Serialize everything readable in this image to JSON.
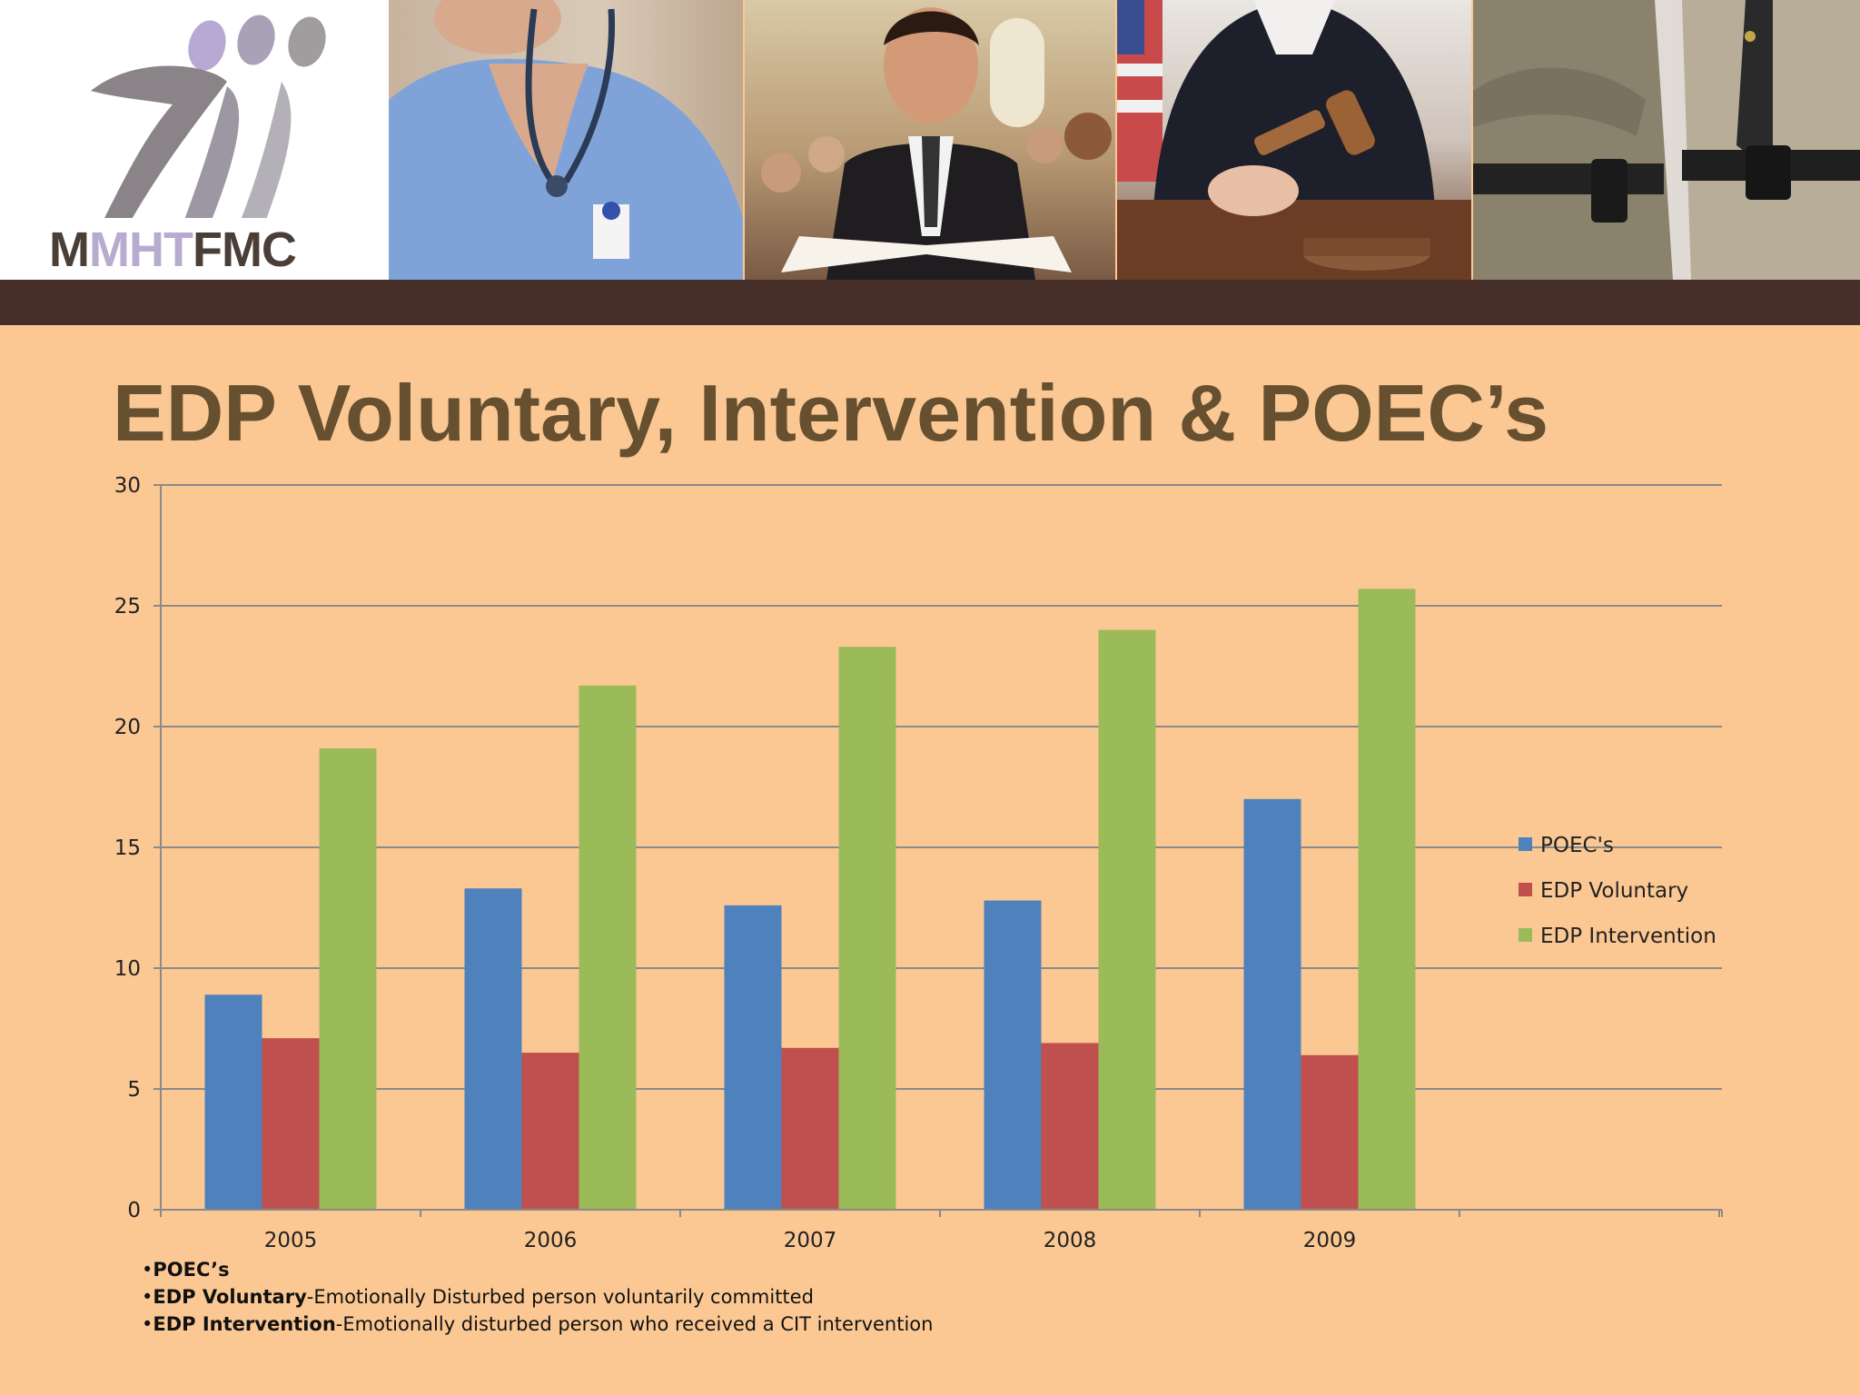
{
  "banner": {
    "logo_text_dark_1": "M",
    "logo_text_light": "MHT",
    "logo_text_dark_2": "FMC",
    "panels": [
      "nurse-photo",
      "pastor-photo",
      "judge-photo",
      "police-photo"
    ]
  },
  "slide_title": "EDP Voluntary, Intervention & POEC’s",
  "chart_data": {
    "type": "bar",
    "categories": [
      "2005",
      "2006",
      "2007",
      "2008",
      "2009"
    ],
    "series": [
      {
        "name": "POEC's",
        "color": "#4f81bd",
        "values": [
          8.9,
          13.3,
          12.6,
          12.8,
          17.0
        ]
      },
      {
        "name": "EDP Voluntary",
        "color": "#c0504d",
        "values": [
          7.1,
          6.5,
          6.7,
          6.9,
          6.4
        ]
      },
      {
        "name": "EDP Intervention",
        "color": "#9bbb59",
        "values": [
          19.1,
          21.7,
          23.3,
          24.0,
          25.7
        ]
      }
    ],
    "yticks": [
      "0",
      "5",
      "10",
      "15",
      "20",
      "25",
      "30"
    ],
    "ylim": [
      0,
      30
    ],
    "grid": true,
    "legend": "right"
  },
  "notes": [
    {
      "term": "POEC’s",
      "desc": ""
    },
    {
      "term": "EDP Voluntary",
      "desc": "-Emotionally Disturbed person voluntarily committed"
    },
    {
      "term": "EDP Intervention",
      "desc": "-Emotionally disturbed person who received a CIT intervention"
    }
  ]
}
